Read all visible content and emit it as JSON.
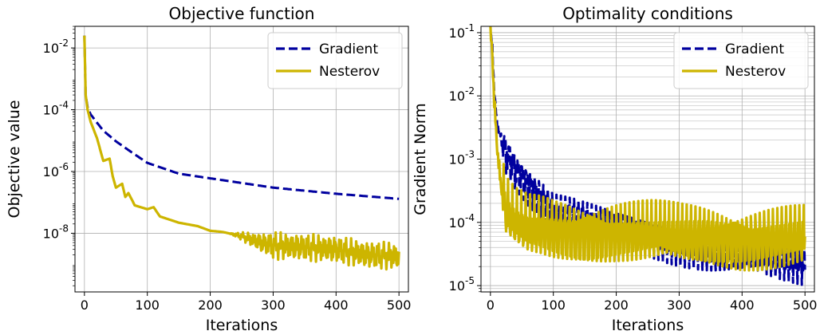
{
  "chart_data": [
    {
      "type": "line",
      "title": "Objective function",
      "xlabel": "Iterations",
      "ylabel": "Objective value",
      "xlim": [
        -15,
        515
      ],
      "ylim_log10": [
        -9.9,
        -1.3
      ],
      "yscale": "log",
      "x_ticks": [
        0,
        100,
        200,
        300,
        400,
        500
      ],
      "x_tick_labels": [
        "0",
        "100",
        "200",
        "300",
        "400",
        "500"
      ],
      "y_ticks_log10": [
        -8,
        -6,
        -4,
        -2
      ],
      "y_tick_labels": [
        [
          "10",
          "-8"
        ],
        [
          "10",
          "-6"
        ],
        [
          "10",
          "-4"
        ],
        [
          "10",
          "-2"
        ]
      ],
      "grid": true,
      "legend_position": "top-right",
      "series": [
        {
          "name": "Gradient",
          "color": "#00009f",
          "style": "dashed",
          "x": [
            0,
            2,
            5,
            10,
            20,
            30,
            50,
            75,
            100,
            150,
            200,
            300,
            400,
            500
          ],
          "y": [
            0.025,
            0.0003,
            0.00012,
            7e-05,
            3.8e-05,
            2.1e-05,
            9.5e-06,
            4.2e-06,
            1.9e-06,
            8.5e-07,
            6e-07,
            3e-07,
            1.9e-07,
            1.3e-07
          ]
        },
        {
          "name": "Nesterov",
          "color": "#cdb500",
          "style": "solid",
          "oscillation_after_x": 230,
          "oscillation_decades": 0.45,
          "x": [
            0,
            2,
            5,
            10,
            20,
            30,
            40,
            45,
            50,
            60,
            65,
            70,
            80,
            100,
            110,
            120,
            150,
            180,
            200,
            220,
            250,
            280,
            300,
            350,
            400,
            450,
            500
          ],
          "y": [
            0.025,
            0.0003,
            0.0001,
            4e-05,
            1.2e-05,
            2.2e-06,
            2.6e-06,
            7e-07,
            3e-07,
            4e-07,
            1.5e-07,
            2e-07,
            8e-08,
            6e-08,
            7e-08,
            3.5e-08,
            2.2e-08,
            1.7e-08,
            1.2e-08,
            1.1e-08,
            8e-09,
            5e-09,
            4e-09,
            3.5e-09,
            3e-09,
            2e-09,
            1.8e-09
          ]
        }
      ]
    },
    {
      "type": "line",
      "title": "Optimality conditions",
      "xlabel": "Iterations",
      "ylabel": "Gradient Norm",
      "xlim": [
        -15,
        515
      ],
      "ylim_log10": [
        -5.1,
        -0.9
      ],
      "yscale": "log",
      "x_ticks": [
        0,
        100,
        200,
        300,
        400,
        500
      ],
      "x_tick_labels": [
        "0",
        "100",
        "200",
        "300",
        "400",
        "500"
      ],
      "y_ticks_log10": [
        -5,
        -4,
        -3,
        -2,
        -1
      ],
      "y_tick_labels": [
        [
          "10",
          "-5"
        ],
        [
          "10",
          "-4"
        ],
        [
          "10",
          "-3"
        ],
        [
          "10",
          "-2"
        ],
        [
          "10",
          "-1"
        ]
      ],
      "grid": true,
      "minor_grid": true,
      "legend_position": "top-right",
      "series": [
        {
          "name": "Gradient",
          "color": "#00009f",
          "style": "dashed",
          "x": [
            0,
            3,
            6,
            10,
            15,
            25,
            40,
            60,
            80,
            100,
            150,
            200,
            250,
            300,
            350,
            400,
            450,
            500
          ],
          "y": [
            0.095,
            0.06,
            0.012,
            0.004,
            0.0025,
            0.0012,
            0.0007,
            0.0004,
            0.00025,
            0.00015,
            0.0001,
            7e-05,
            6e-05,
            4.5e-05,
            3.5e-05,
            3e-05,
            2.5e-05,
            2.2e-05
          ],
          "band_decades": 0.35
        },
        {
          "name": "Nesterov",
          "color": "#cdb500",
          "style": "solid",
          "x": [
            0,
            3,
            6,
            10,
            15,
            25,
            40,
            60,
            80,
            100,
            150,
            200,
            250,
            300,
            350,
            400,
            450,
            500
          ],
          "y": [
            0.095,
            0.05,
            0.008,
            0.002,
            0.0005,
            0.00015,
            0.0001,
            8e-05,
            8e-05,
            7.5e-05,
            7e-05,
            7e-05,
            6.5e-05,
            6e-05,
            6e-05,
            5.5e-05,
            5.5e-05,
            5.5e-05
          ],
          "band_decades": 0.55
        }
      ]
    }
  ]
}
